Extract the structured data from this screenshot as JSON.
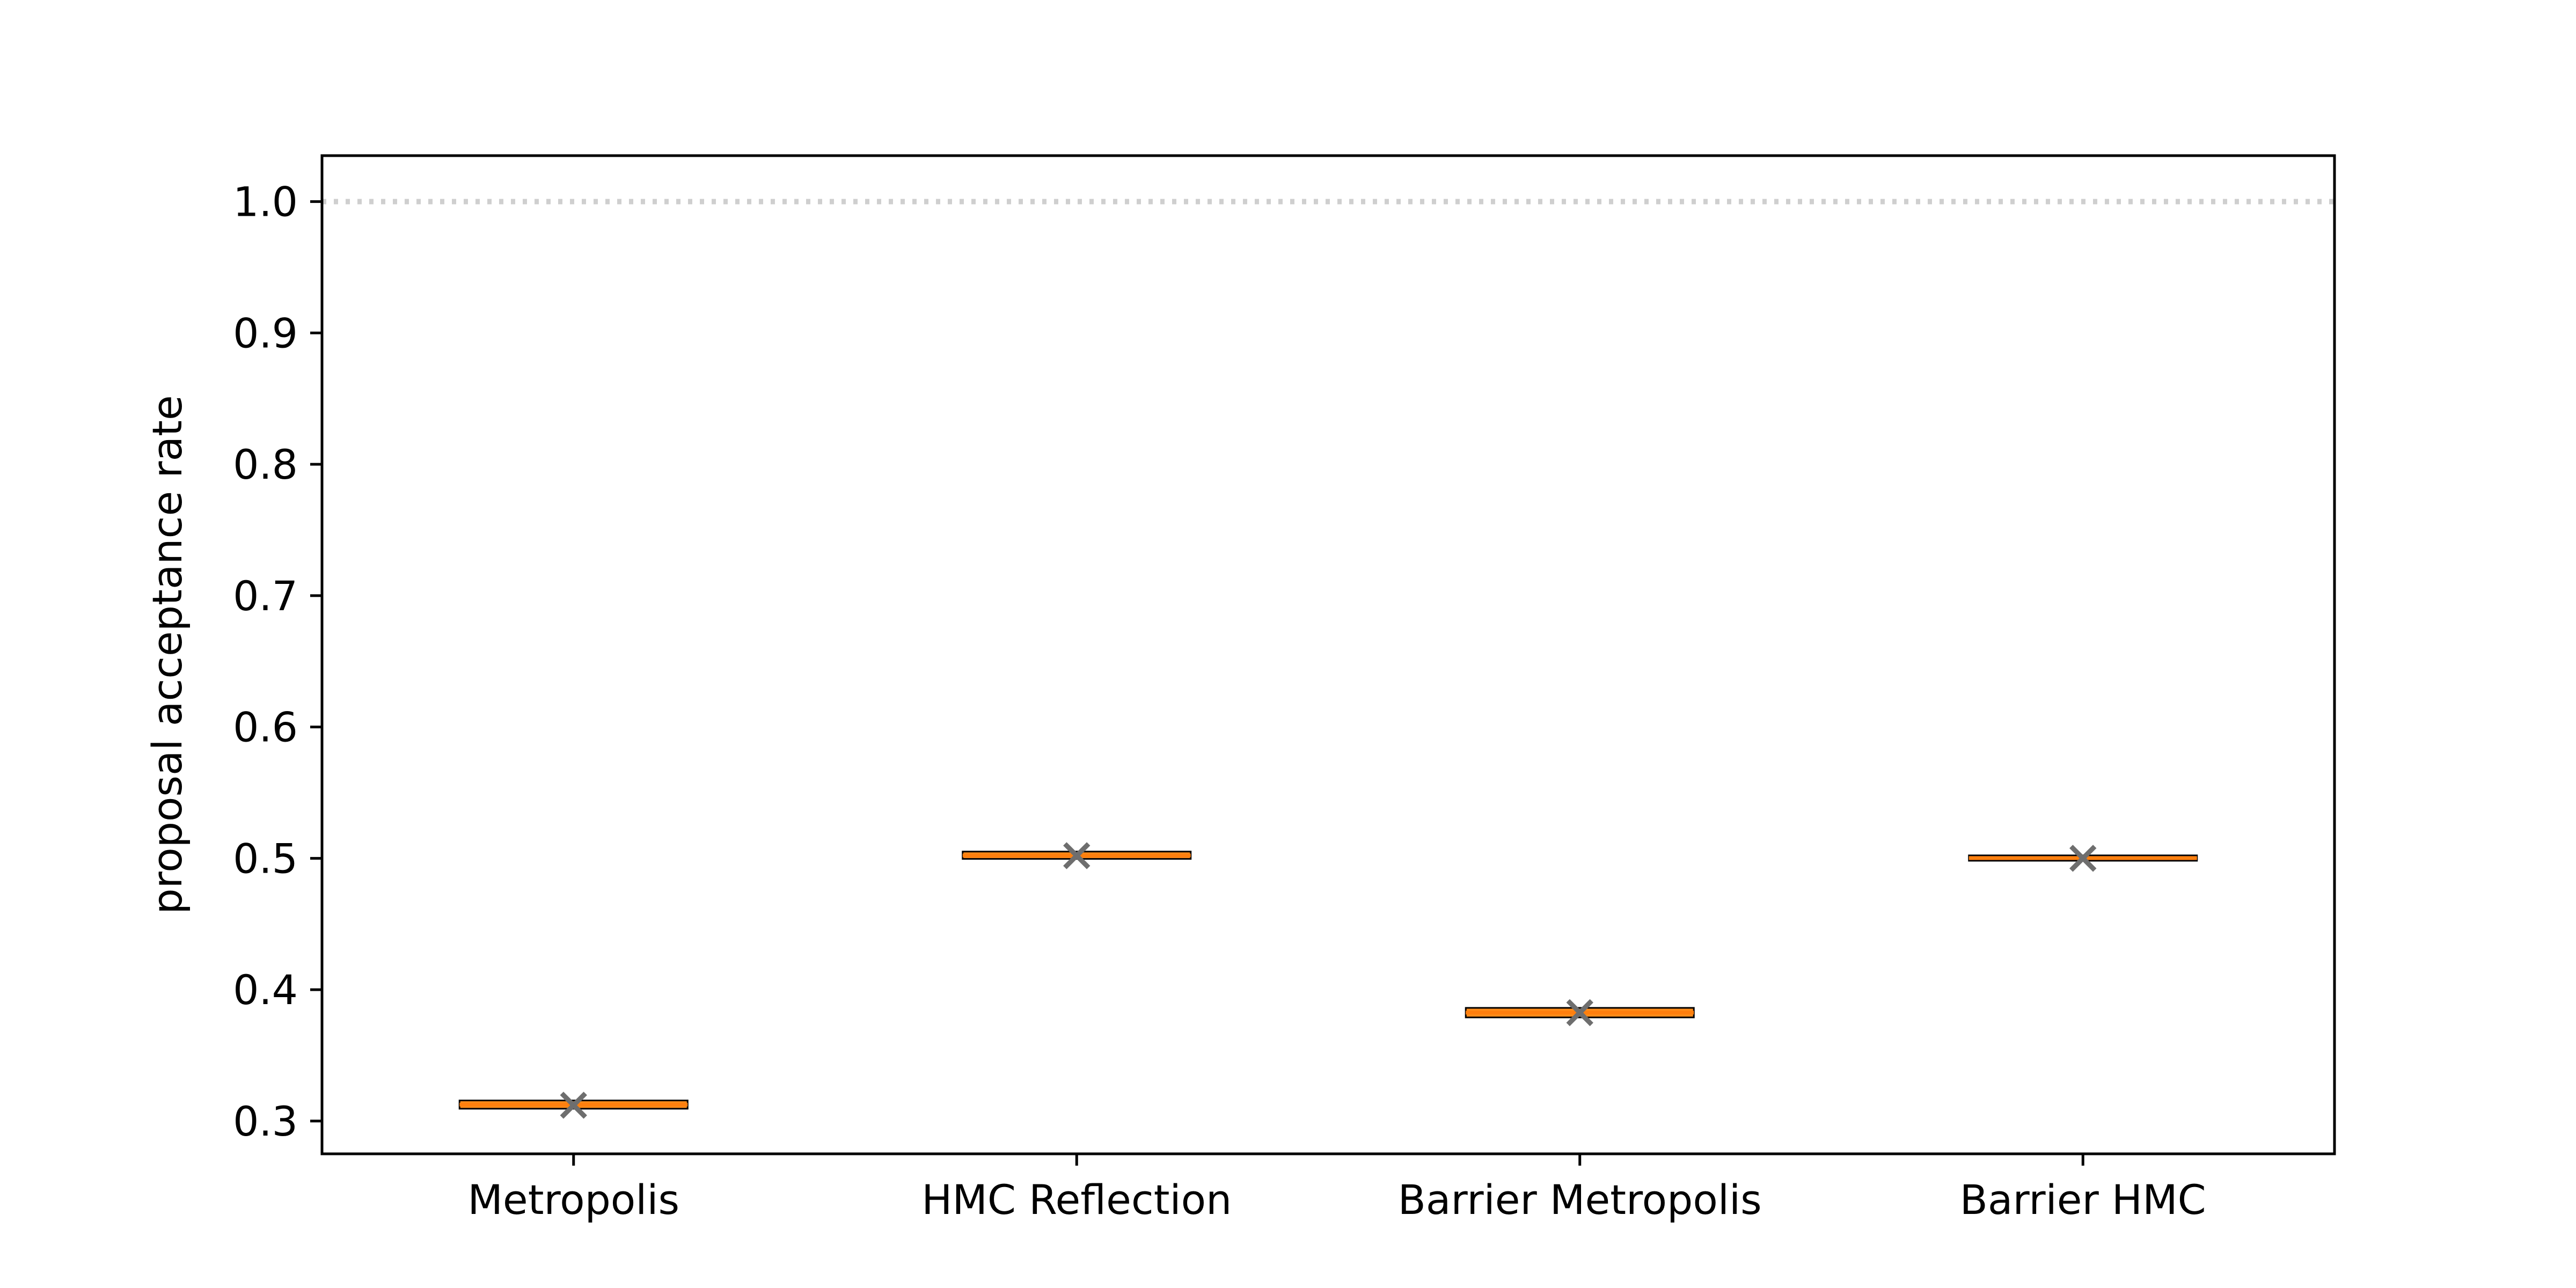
{
  "chart_data": {
    "type": "box",
    "title": "",
    "xlabel": "",
    "ylabel": "proposal acceptance rate",
    "categories": [
      "Metropolis",
      "HMC Reflection",
      "Barrier Metropolis",
      "Barrier HMC"
    ],
    "boxes": [
      {
        "q1": 0.311,
        "median": 0.3125,
        "q3": 0.314,
        "whisker_low": 0.31,
        "whisker_high": 0.3145,
        "mean": 0.312
      },
      {
        "q1": 0.5012,
        "median": 0.5022,
        "q3": 0.5035,
        "whisker_low": 0.5008,
        "whisker_high": 0.504,
        "mean": 0.502
      },
      {
        "q1": 0.3805,
        "median": 0.3825,
        "q3": 0.3845,
        "whisker_low": 0.38,
        "whisker_high": 0.3855,
        "mean": 0.3825
      },
      {
        "q1": 0.4998,
        "median": 0.5002,
        "q3": 0.5006,
        "whisker_low": 0.4995,
        "whisker_high": 0.5008,
        "mean": 0.5
      }
    ],
    "reference_line": 1.0,
    "ylim": [
      0.275,
      1.035
    ],
    "yticks": [
      0.3,
      0.4,
      0.5,
      0.6,
      0.7,
      0.8,
      0.9,
      1.0
    ],
    "ytick_labels": [
      "0.3",
      "0.4",
      "0.5",
      "0.6",
      "0.7",
      "0.8",
      "0.9",
      "1.0"
    ],
    "grid": false,
    "colors": {
      "box_fill": "#ff8c1a",
      "box_edge": "#000000",
      "median": "#ff7f0e",
      "mean_marker": "#6e6e6e",
      "reference_line": "#cfcfcf"
    }
  }
}
